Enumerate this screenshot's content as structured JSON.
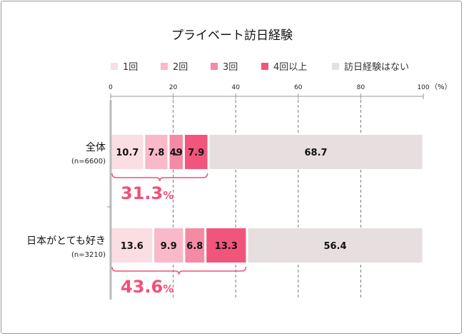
{
  "chart_data": {
    "type": "bar",
    "orientation": "horizontal",
    "stacked": true,
    "title": "プライベート訪日経験",
    "unit_label": "（%）",
    "xlim": [
      0,
      100
    ],
    "xticks": [
      0,
      20,
      40,
      60,
      80,
      100
    ],
    "grid": "dashed vertical",
    "legend_position": "top",
    "categories": [
      {
        "label": "全体",
        "sublabel": "(n=6600)",
        "summary": "31.3",
        "summary_unit": "%"
      },
      {
        "label": "日本がとても好き",
        "sublabel": "(n=3210)",
        "summary": "43.6",
        "summary_unit": "%"
      }
    ],
    "series": [
      {
        "name": "1回",
        "color": "#fbdde4",
        "values": [
          10.7,
          13.6
        ]
      },
      {
        "name": "2回",
        "color": "#f9b9c9",
        "values": [
          7.8,
          9.9
        ]
      },
      {
        "name": "3回",
        "color": "#f58aa5",
        "values": [
          4.9,
          6.8
        ]
      },
      {
        "name": "4回以上",
        "color": "#f2557c",
        "values": [
          7.9,
          13.3
        ]
      },
      {
        "name": "訪日経験はない",
        "color": "#e6dedf",
        "values": [
          68.7,
          56.4
        ]
      }
    ],
    "accent_color": "#f0507a"
  }
}
